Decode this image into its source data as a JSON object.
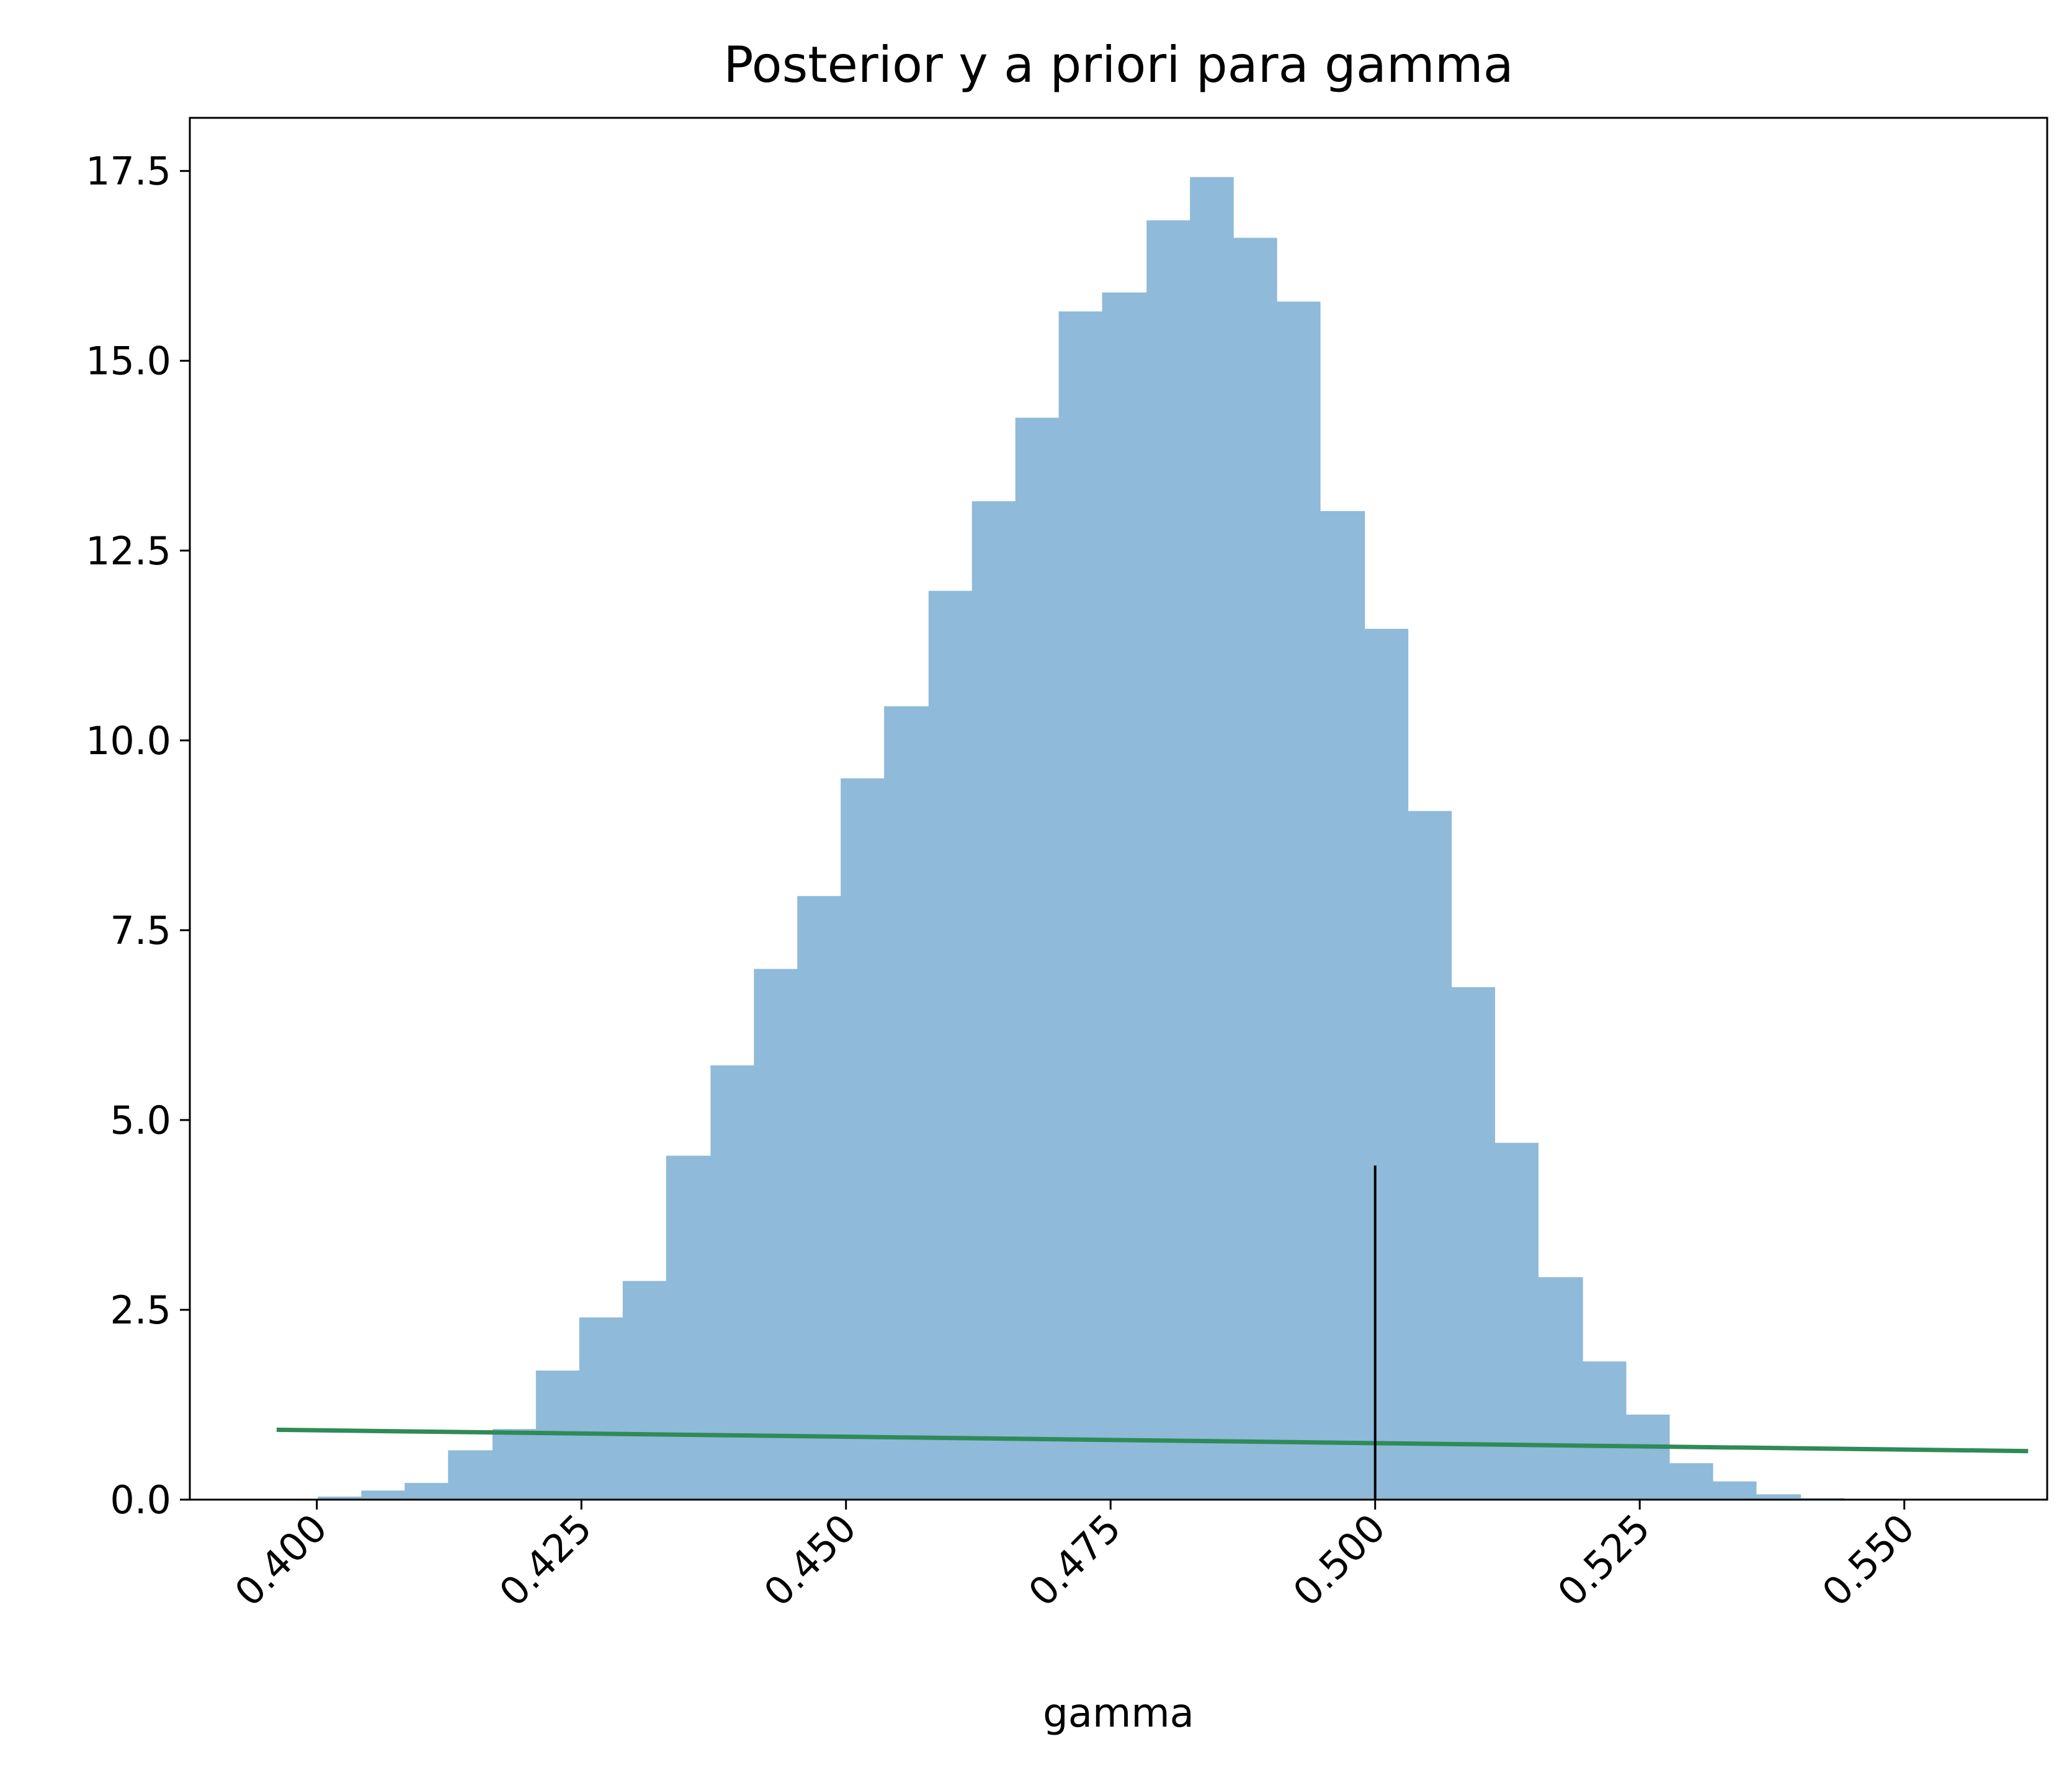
{
  "chart_data": {
    "type": "bar",
    "title": "Posterior y a priori para gamma",
    "xlabel": "gamma",
    "ylabel": "",
    "xlim": [
      0.388,
      0.5635
    ],
    "ylim": [
      0,
      18.2
    ],
    "xticks": [
      0.4,
      0.425,
      0.45,
      0.475,
      0.5,
      0.525,
      0.55
    ],
    "xtick_labels": [
      "0.400",
      "0.425",
      "0.450",
      "0.475",
      "0.500",
      "0.525",
      "0.550"
    ],
    "yticks": [
      0,
      2.5,
      5,
      7.5,
      10,
      12.5,
      15,
      17.5
    ],
    "ytick_labels": [
      "0.0",
      "2.5",
      "5.0",
      "7.5",
      "10.0",
      "12.5",
      "15.0",
      "17.5"
    ],
    "grid": false,
    "histogram": {
      "name": "",
      "color": "#8fbad9",
      "bin_edges": [
        0.4001,
        0.4042,
        0.4083,
        0.4124,
        0.4166,
        0.4207,
        0.4248,
        0.4289,
        0.433,
        0.4372,
        0.4413,
        0.4454,
        0.4495,
        0.4536,
        0.4578,
        0.4619,
        0.466,
        0.4701,
        0.4742,
        0.4784,
        0.4825,
        0.4866,
        0.4907,
        0.4948,
        0.499,
        0.5031,
        0.5072,
        0.5113,
        0.5154,
        0.5196,
        0.5237,
        0.5278,
        0.5319,
        0.536,
        0.5402,
        0.5443,
        0.5484
      ],
      "values": [
        0.04,
        0.12,
        0.22,
        0.65,
        0.93,
        1.7,
        2.4,
        2.88,
        4.53,
        5.72,
        6.99,
        7.95,
        9.5,
        10.45,
        11.97,
        13.15,
        14.25,
        15.65,
        15.9,
        16.85,
        17.42,
        16.62,
        15.78,
        13.02,
        11.47,
        9.07,
        6.75,
        4.7,
        2.93,
        1.82,
        1.12,
        0.48,
        0.24,
        0.07,
        0.02,
        0.01
      ]
    },
    "prior_line": {
      "name": "",
      "color": "#2e8b57",
      "x": [
        0.3962,
        0.5617
      ],
      "y": [
        0.92,
        0.64
      ]
    },
    "true_value_line": {
      "name": "",
      "color": "#000000",
      "x": 0.5,
      "y_from": 0,
      "y_to": 4.4
    }
  }
}
